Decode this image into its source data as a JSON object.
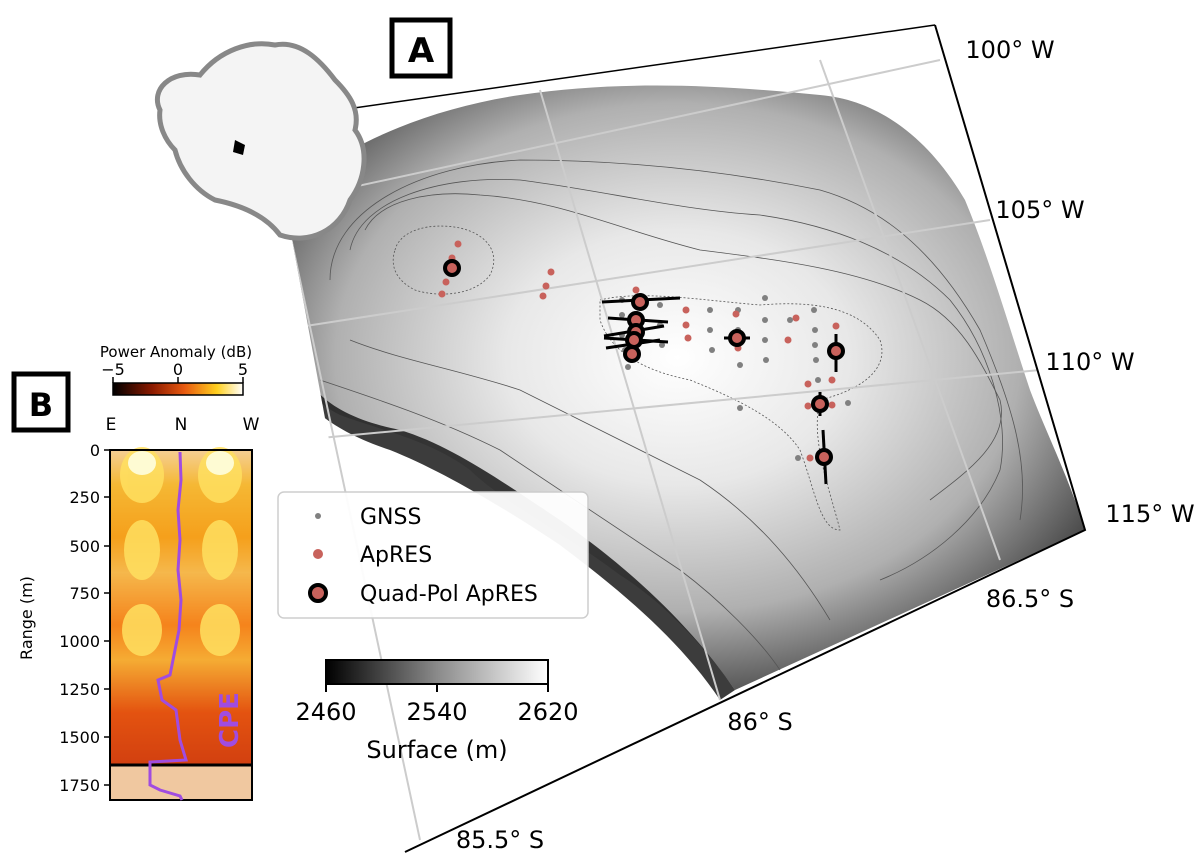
{
  "panel_a": {
    "label": "A",
    "longitude_labels": [
      "100° W",
      "105° W",
      "110° W",
      "115° W"
    ],
    "latitude_labels": [
      "86.5° S",
      "86° S",
      "85.5° S"
    ],
    "legend": {
      "gnss": "GNSS",
      "apres": "ApRES",
      "quad_pol": "Quad-Pol ApRES"
    },
    "colorbar": {
      "label": "Surface (m)",
      "ticks": [
        "2460",
        "2540",
        "2620"
      ],
      "range": [
        2460,
        2620
      ]
    },
    "colors": {
      "gnss": "#808080",
      "apres": "#c8625c",
      "quad_pol_ring": "#000000"
    },
    "inset": "Antarctica locator map"
  },
  "panel_b": {
    "label": "B",
    "colorbar_label": "Power Anomaly (dB)",
    "colorbar_ticks": [
      "−5",
      "0",
      "5"
    ],
    "colorbar_range": [
      -5,
      5
    ],
    "azimuth_ticks": [
      "E",
      "N",
      "W"
    ],
    "ylabel": "Range (m)",
    "range_ticks": [
      "0",
      "250",
      "500",
      "750",
      "1000",
      "1250",
      "1500",
      "1750"
    ],
    "annotation": "CPE",
    "annotation_color": "#a04ce0"
  }
}
